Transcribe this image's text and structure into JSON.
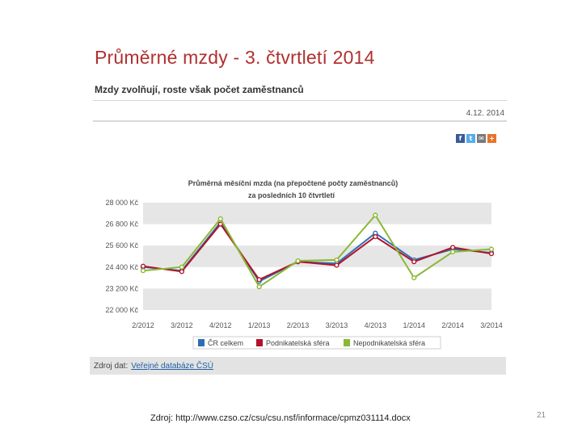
{
  "article": {
    "title": "Průměrné mzdy - 3. čtvrtletí 2014",
    "subtitle": "Mzdy zvolňují, roste však počet zaměstnanců",
    "date": "4.12. 2014"
  },
  "share": {
    "facebook_glyph": "f",
    "twitter_glyph": "t",
    "email_glyph": "✉",
    "more_glyph": "+"
  },
  "chart_data": {
    "type": "line",
    "title_line1": "Průměrná měsíční mzda (na přepočtené počty zaměstnanců)",
    "title_line2": "za posledních 10 čtvrtletí",
    "categories": [
      "2/2012",
      "3/2012",
      "4/2012",
      "1/2013",
      "2/2013",
      "3/2013",
      "4/2013",
      "1/2014",
      "2/2014",
      "3/2014"
    ],
    "ytick_values": [
      22000,
      23200,
      24400,
      25600,
      26800,
      28000
    ],
    "ytick_labels": [
      "22 000 Kč",
      "23 200 Kč",
      "24 400 Kč",
      "25 600 Kč",
      "26 800 Kč",
      "28 000 Kč"
    ],
    "ylim": [
      22000,
      28000
    ],
    "shaded_bands": [
      [
        22000,
        23200
      ],
      [
        24400,
        25600
      ],
      [
        26800,
        28000
      ]
    ],
    "series": [
      {
        "name": "ČR celkem",
        "color": "#2e6db4",
        "values": [
          24400,
          24200,
          26900,
          23600,
          24700,
          24600,
          26300,
          24800,
          25400,
          25200
        ]
      },
      {
        "name": "Podnikatelská sféra",
        "color": "#b1142a",
        "values": [
          24450,
          24150,
          26800,
          23700,
          24700,
          24500,
          26100,
          24700,
          25500,
          25150
        ]
      },
      {
        "name": "Nepodnikatelská sféra",
        "color": "#8ab833",
        "values": [
          24200,
          24400,
          27100,
          23300,
          24750,
          24800,
          27300,
          23800,
          25250,
          25400
        ]
      }
    ],
    "legend_position": "bottom"
  },
  "source_bar": {
    "label": "Zdroj dat:",
    "link": "Veřejné databáze ČSÚ"
  },
  "footer": {
    "source": "Zdroj: http://www.czso.cz/csu/csu.nsf/informace/cpmz031114.docx",
    "page_number": "21"
  }
}
